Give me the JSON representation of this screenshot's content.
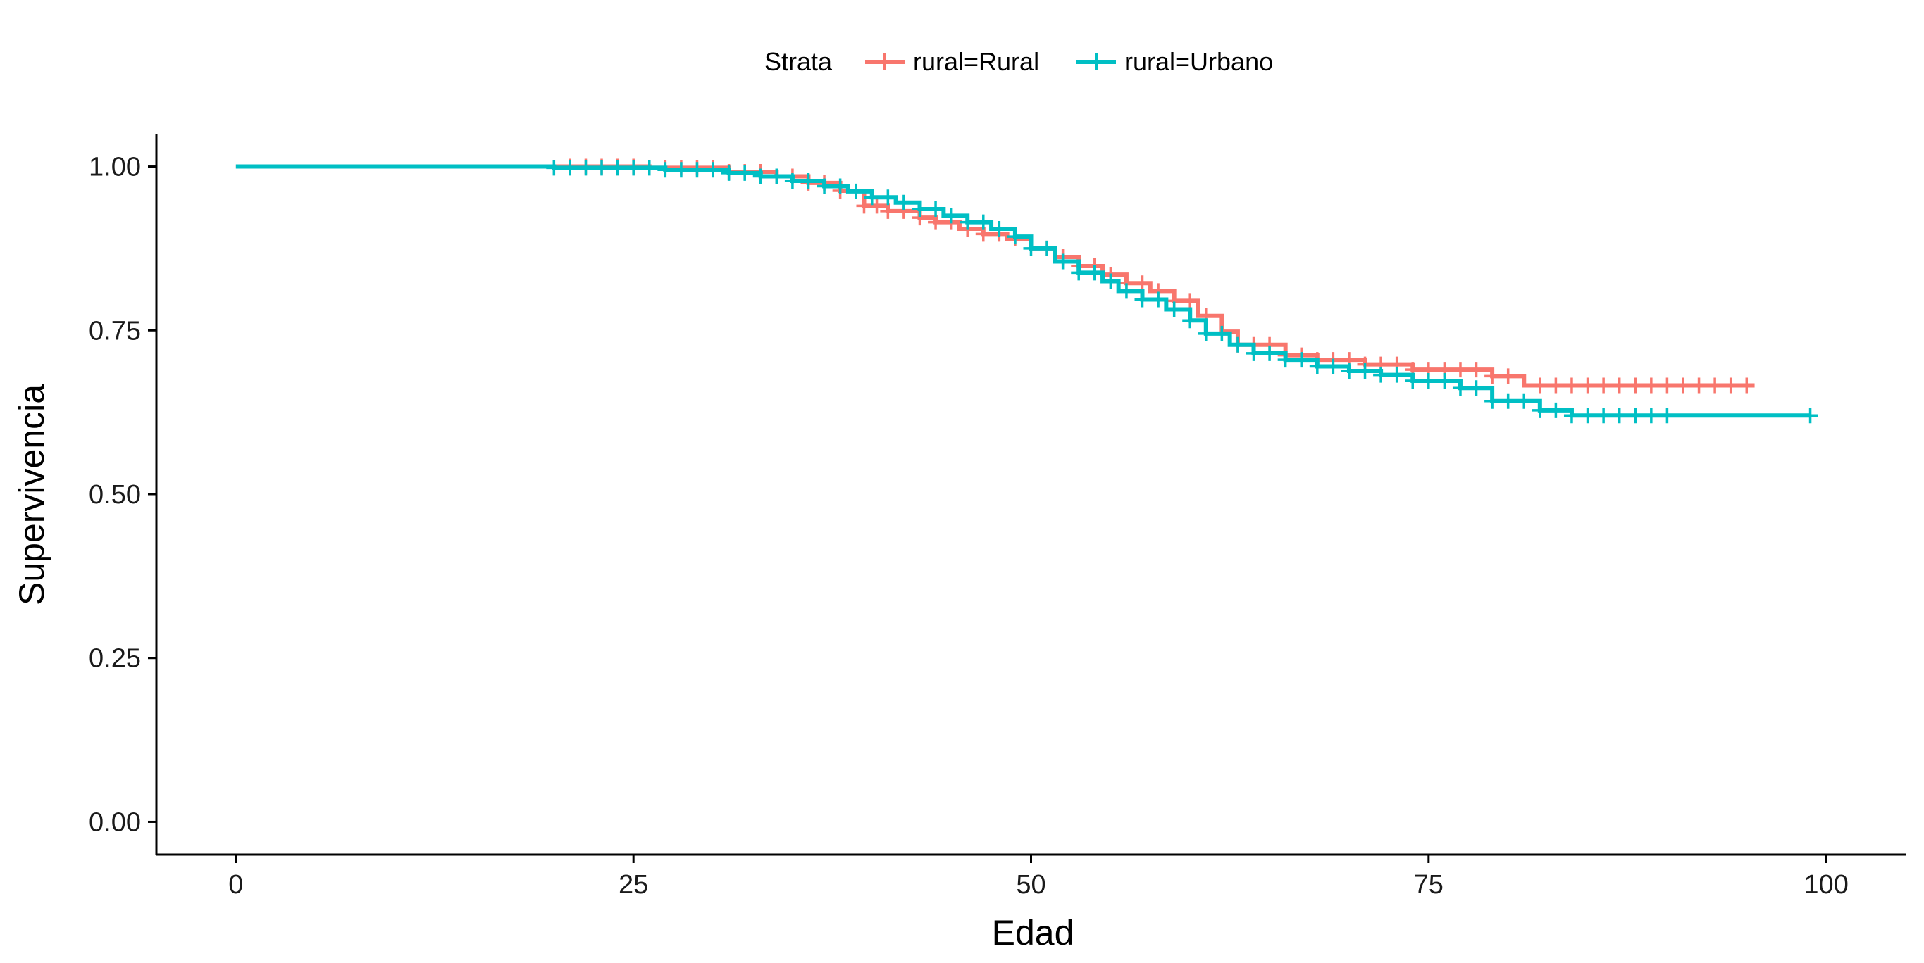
{
  "chart_data": {
    "type": "line",
    "xlabel": "Edad",
    "ylabel": "Supervivencia",
    "xlim": [
      -5,
      105
    ],
    "ylim": [
      -0.05,
      1.05
    ],
    "x_ticks": [
      0,
      25,
      50,
      75,
      100
    ],
    "x_tick_labels": [
      "0",
      "25",
      "50",
      "75",
      "100"
    ],
    "y_ticks": [
      0,
      0.25,
      0.5,
      0.75,
      1
    ],
    "y_tick_labels": [
      "0.00",
      "0.25",
      "0.50",
      "0.75",
      "1.00"
    ],
    "grid": false,
    "legend": {
      "position": "top",
      "title": "Strata",
      "entries": [
        "rural=Rural",
        "rural=Urbano"
      ]
    },
    "series": [
      {
        "name": "rural=Rural",
        "color": "#F8766D",
        "steps": [
          [
            0,
            1.0
          ],
          [
            26,
            0.998
          ],
          [
            31,
            0.992
          ],
          [
            34,
            0.985
          ],
          [
            36,
            0.975
          ],
          [
            38,
            0.963
          ],
          [
            39.5,
            0.94
          ],
          [
            41,
            0.932
          ],
          [
            43,
            0.922
          ],
          [
            44,
            0.915
          ],
          [
            45.5,
            0.905
          ],
          [
            47,
            0.897
          ],
          [
            48.5,
            0.89
          ],
          [
            50,
            0.875
          ],
          [
            51.5,
            0.862
          ],
          [
            53,
            0.848
          ],
          [
            54.5,
            0.835
          ],
          [
            56,
            0.822
          ],
          [
            57.5,
            0.81
          ],
          [
            59,
            0.795
          ],
          [
            60.5,
            0.772
          ],
          [
            62,
            0.748
          ],
          [
            63,
            0.728
          ],
          [
            66,
            0.712
          ],
          [
            68,
            0.705
          ],
          [
            71,
            0.698
          ],
          [
            74,
            0.69
          ],
          [
            79,
            0.68
          ],
          [
            81,
            0.666
          ],
          [
            95.5,
            0.666
          ]
        ],
        "censor_x": [
          21,
          22,
          23,
          24,
          25,
          27,
          28,
          29,
          30,
          31,
          32,
          33,
          34,
          35,
          36,
          37,
          38,
          39.5,
          40.3,
          41,
          42,
          43,
          44,
          45,
          46,
          47,
          48,
          49,
          51,
          52,
          53,
          54,
          55,
          56,
          57,
          58,
          59,
          60,
          61,
          63,
          64,
          65,
          66,
          67,
          68,
          69,
          70,
          71,
          72,
          73,
          74,
          75,
          76,
          77,
          78,
          79,
          80,
          82,
          83,
          84,
          85,
          86,
          87,
          88,
          89,
          90,
          91,
          92,
          93,
          94,
          95
        ]
      },
      {
        "name": "rural=Urbano",
        "color": "#00BFC4",
        "steps": [
          [
            0,
            1.0
          ],
          [
            20,
            0.998
          ],
          [
            27,
            0.995
          ],
          [
            31,
            0.99
          ],
          [
            33,
            0.985
          ],
          [
            35,
            0.978
          ],
          [
            37,
            0.97
          ],
          [
            38.5,
            0.962
          ],
          [
            40,
            0.953
          ],
          [
            41.5,
            0.945
          ],
          [
            43,
            0.935
          ],
          [
            44.5,
            0.925
          ],
          [
            46,
            0.915
          ],
          [
            47.5,
            0.905
          ],
          [
            49,
            0.893
          ],
          [
            50,
            0.875
          ],
          [
            51.5,
            0.855
          ],
          [
            53,
            0.838
          ],
          [
            54.5,
            0.825
          ],
          [
            55.5,
            0.81
          ],
          [
            57,
            0.797
          ],
          [
            58.5,
            0.782
          ],
          [
            60,
            0.765
          ],
          [
            61,
            0.745
          ],
          [
            62.5,
            0.728
          ],
          [
            64,
            0.715
          ],
          [
            66,
            0.705
          ],
          [
            68,
            0.695
          ],
          [
            70,
            0.688
          ],
          [
            72,
            0.682
          ],
          [
            74,
            0.673
          ],
          [
            77,
            0.662
          ],
          [
            79,
            0.642
          ],
          [
            82,
            0.628
          ],
          [
            84,
            0.62
          ],
          [
            99,
            0.62
          ]
        ],
        "censor_x": [
          20,
          21,
          22,
          23,
          24,
          25,
          26,
          27,
          28,
          29,
          30,
          31,
          32,
          33,
          34,
          35,
          36,
          37,
          38,
          39,
          40,
          41,
          42,
          43,
          44,
          45,
          46,
          47,
          48,
          49,
          50,
          51,
          52,
          53,
          54,
          55,
          56,
          57,
          58,
          59,
          60,
          61,
          62,
          63,
          64,
          65,
          66,
          67,
          68,
          69,
          70,
          71,
          72,
          73,
          74,
          75,
          76,
          77,
          78,
          79,
          80,
          81,
          82,
          83,
          84,
          85,
          86,
          87,
          88,
          89,
          90,
          99
        ]
      }
    ]
  }
}
